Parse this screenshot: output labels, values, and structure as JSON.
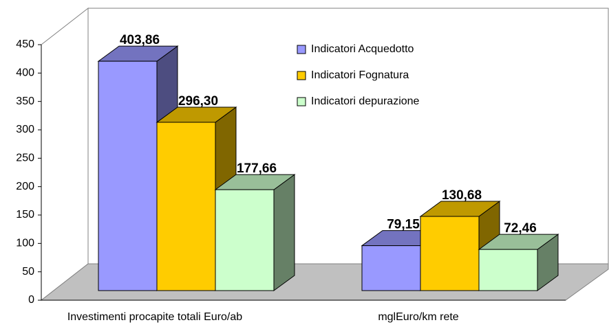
{
  "chart_data": {
    "type": "bar3d",
    "categories": [
      "Investimenti procapite totali Euro/ab",
      "mglEuro/km rete"
    ],
    "series": [
      {
        "name": "Indicatori Acquedotto",
        "color": "#9999ff",
        "values": [
          403.86,
          79.15
        ],
        "value_labels": [
          "403,86",
          "79,15"
        ]
      },
      {
        "name": "Indicatori Fognatura",
        "color": "#ffcc00",
        "values": [
          296.3,
          130.68
        ],
        "value_labels": [
          "296,30",
          "130,68"
        ]
      },
      {
        "name": "Indicatori depurazione",
        "color": "#ccffcc",
        "values": [
          177.66,
          72.46
        ],
        "value_labels": [
          "177,66",
          "72,46"
        ]
      }
    ],
    "ylim": [
      0,
      450
    ],
    "yticks": [
      0,
      50,
      100,
      150,
      200,
      250,
      300,
      350,
      400,
      450
    ],
    "grid": false
  }
}
